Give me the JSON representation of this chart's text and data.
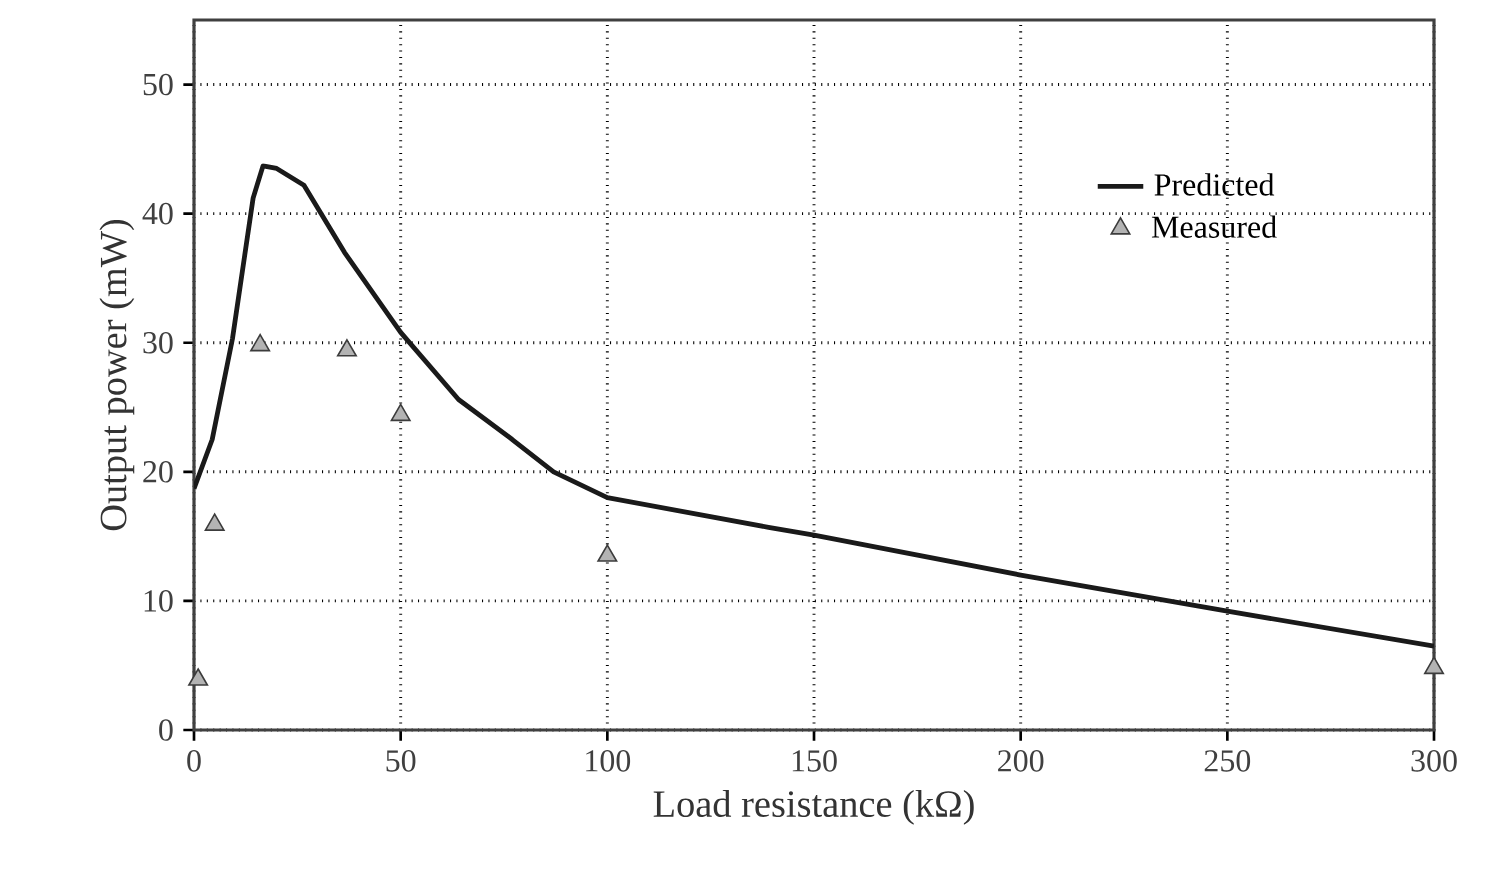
{
  "chart_data": {
    "type": "line",
    "xlabel": "Load resistance (kΩ)",
    "ylabel": "Output power (mW)",
    "xlim": [
      0,
      300
    ],
    "ylim": [
      0,
      55
    ],
    "xticks": [
      0,
      50,
      100,
      150,
      200,
      250,
      300
    ],
    "yticks": [
      0,
      10,
      20,
      30,
      40,
      50
    ],
    "grid": true,
    "legend": "top right",
    "series": [
      {
        "name": "Predicted",
        "color": "#1a1a1a",
        "marker": "none",
        "line_style": "solid",
        "x": [
          0,
          4.4,
          9.3,
          14.3,
          16.7,
          20,
          26.6,
          36.4,
          50,
          64,
          77,
          87,
          100,
          139,
          150,
          200,
          250,
          300
        ],
        "values": [
          18.7,
          22.5,
          30.3,
          41.2,
          43.7,
          43.5,
          42.2,
          37,
          30.8,
          25.6,
          22.5,
          20,
          18,
          15.7,
          15.1,
          12,
          9.2,
          6.5
        ]
      },
      {
        "name": "Measured",
        "type": "scatter",
        "color": "#b3b3b3",
        "marker": "triangle",
        "x": [
          1,
          5,
          16,
          37,
          50,
          100,
          300
        ],
        "values": [
          3.9,
          15.9,
          29.8,
          29.4,
          24.4,
          13.5,
          4.8
        ]
      }
    ]
  }
}
